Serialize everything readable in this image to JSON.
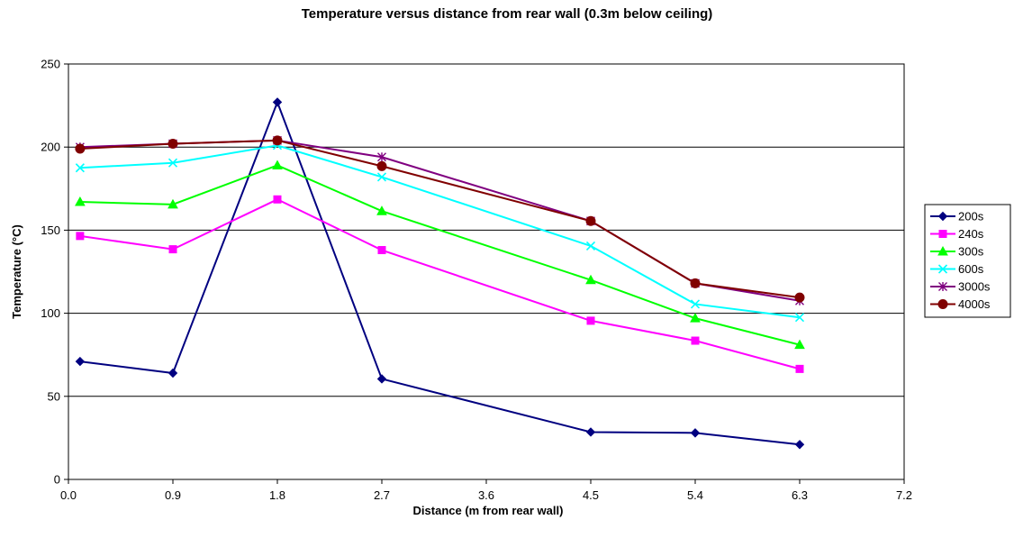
{
  "chart_data": {
    "type": "line",
    "title": "Temperature versus distance from rear wall (0.3m below ceiling)",
    "xlabel": "Distance (m from rear wall)",
    "ylabel": "Temperature (°C)",
    "xlim": [
      0,
      7.2
    ],
    "ylim": [
      0,
      250
    ],
    "xticks": [
      "0.0",
      "0.9",
      "1.8",
      "2.7",
      "3.6",
      "4.5",
      "5.4",
      "6.3",
      "7.2"
    ],
    "yticks": [
      "0",
      "50",
      "100",
      "150",
      "200",
      "250"
    ],
    "grid": "horizontal",
    "legend_position": "right",
    "x": [
      0.1,
      0.9,
      1.8,
      2.7,
      4.5,
      5.4,
      6.3
    ],
    "series": [
      {
        "name": "200s",
        "color": "#000080",
        "marker": "diamond",
        "values": [
          71,
          64,
          227,
          60.5,
          28.5,
          28,
          21
        ]
      },
      {
        "name": "240s",
        "color": "#ff00ff",
        "marker": "square",
        "values": [
          146.5,
          138.5,
          168.5,
          138,
          95.5,
          83.5,
          66.5
        ]
      },
      {
        "name": "300s",
        "color": "#00ff00",
        "marker": "triangle",
        "values": [
          167,
          165.5,
          189,
          161.5,
          120,
          97,
          81
        ]
      },
      {
        "name": "600s",
        "color": "#00ffff",
        "marker": "x",
        "values": [
          187.5,
          190.5,
          201,
          182,
          140.5,
          105.5,
          97.5
        ]
      },
      {
        "name": "3000s",
        "color": "#800080",
        "marker": "star",
        "values": [
          200,
          202,
          204,
          194,
          155.5,
          118,
          107.5
        ]
      },
      {
        "name": "4000s",
        "color": "#800000",
        "marker": "circle",
        "values": [
          199,
          202,
          204,
          188.5,
          155.5,
          118,
          109.5
        ]
      }
    ]
  }
}
